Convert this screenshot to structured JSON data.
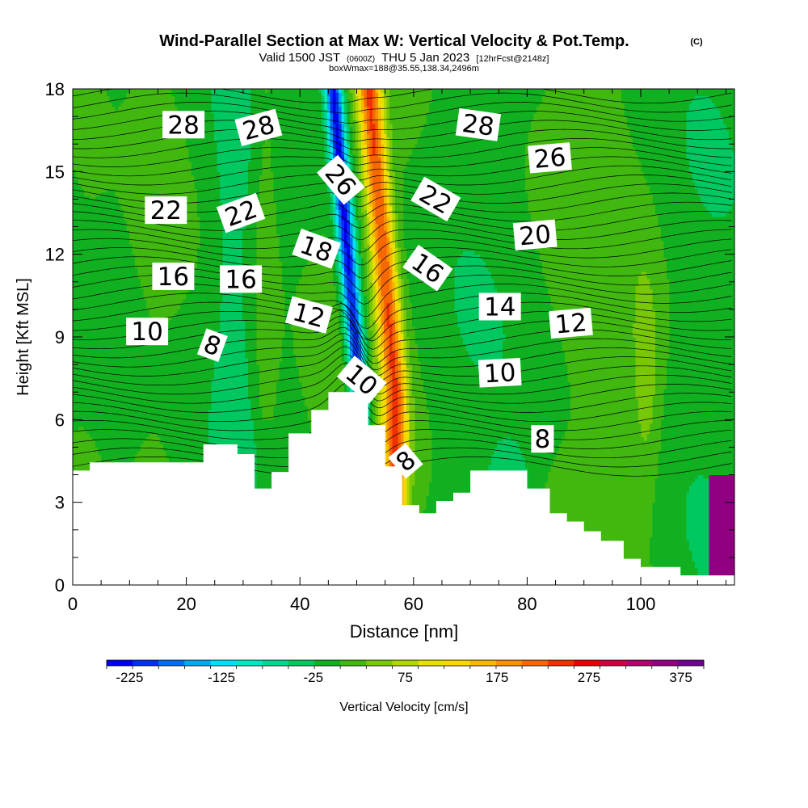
{
  "header": {
    "title": "Wind-Parallel Section at Max W: Vertical Velocity & Pot.Temp.",
    "copyright": "(C)",
    "valid_prefix": "Valid 1500 JST",
    "valid_utc": "(0600Z)",
    "valid_date": "THU 5 Jan 2023",
    "forecast": "[12hrFcst@2148z]",
    "box_info": "boxWmax=188@35.55,138.34,2496m"
  },
  "chart_data": {
    "type": "heatmap",
    "xlabel": "Distance [nm]",
    "ylabel": "Height [Kft MSL]",
    "xlim": [
      0,
      116.5
    ],
    "ylim": [
      0,
      18
    ],
    "x_ticks": [
      "0",
      "20",
      "40",
      "60",
      "80",
      "100"
    ],
    "y_ticks": [
      "0",
      "3",
      "6",
      "9",
      "12",
      "15",
      "18"
    ],
    "colorbar": {
      "label": "Vertical Velocity [cm/s]",
      "tick_labels": [
        "-225",
        "-125",
        "-25",
        "75",
        "175",
        "275",
        "375"
      ],
      "min": -250,
      "max": 400,
      "colors": [
        "#0000f0",
        "#0030f0",
        "#0070f0",
        "#00a8f0",
        "#00e0f8",
        "#00e8c0",
        "#00d890",
        "#00c860",
        "#10b020",
        "#40b810",
        "#78c808",
        "#b0d800",
        "#e8e000",
        "#f8d800",
        "#f8b800",
        "#f89000",
        "#f86800",
        "#f03000",
        "#e80000",
        "#d00040",
        "#b00070",
        "#900080",
        "#700090"
      ]
    },
    "terrain_profile": [
      [
        0,
        4.15
      ],
      [
        3,
        4.15
      ],
      [
        3,
        4.45
      ],
      [
        23,
        4.45
      ],
      [
        23,
        5.1
      ],
      [
        29,
        5.1
      ],
      [
        29,
        4.75
      ],
      [
        32,
        4.75
      ],
      [
        32,
        3.5
      ],
      [
        35,
        3.5
      ],
      [
        35,
        4.1
      ],
      [
        38,
        4.1
      ],
      [
        38,
        5.5
      ],
      [
        42,
        5.5
      ],
      [
        42,
        6.35
      ],
      [
        45,
        6.35
      ],
      [
        45,
        7.0
      ],
      [
        52,
        7.0
      ],
      [
        52,
        5.8
      ],
      [
        55,
        5.8
      ],
      [
        55,
        4.3
      ],
      [
        58,
        4.3
      ],
      [
        58,
        2.9
      ],
      [
        61,
        2.9
      ],
      [
        61,
        2.6
      ],
      [
        64,
        2.6
      ],
      [
        64,
        3.05
      ],
      [
        67,
        3.05
      ],
      [
        67,
        3.35
      ],
      [
        70,
        3.35
      ],
      [
        70,
        4.15
      ],
      [
        80,
        4.15
      ],
      [
        80,
        3.5
      ],
      [
        84,
        3.5
      ],
      [
        84,
        2.6
      ],
      [
        87,
        2.6
      ],
      [
        87,
        2.3
      ],
      [
        90,
        2.3
      ],
      [
        90,
        1.95
      ],
      [
        93,
        1.95
      ],
      [
        93,
        1.6
      ],
      [
        97,
        1.6
      ],
      [
        97,
        0.95
      ],
      [
        100,
        0.95
      ],
      [
        100,
        0.65
      ],
      [
        107,
        0.65
      ],
      [
        107,
        0.35
      ],
      [
        116.5,
        0.35
      ]
    ],
    "theta_labels": [
      {
        "text": "28",
        "x": 19.5,
        "y": 16.7,
        "rot": 0
      },
      {
        "text": "28",
        "x": 32.7,
        "y": 16.6,
        "rot": -15
      },
      {
        "text": "28",
        "x": 71.4,
        "y": 16.7,
        "rot": 8
      },
      {
        "text": "26",
        "x": 47.2,
        "y": 14.7,
        "rot": 50
      },
      {
        "text": "26",
        "x": 84,
        "y": 15.5,
        "rot": -5
      },
      {
        "text": "22",
        "x": 16.4,
        "y": 13.6,
        "rot": 0
      },
      {
        "text": "22",
        "x": 29.6,
        "y": 13.5,
        "rot": -20
      },
      {
        "text": "22",
        "x": 63.9,
        "y": 14.0,
        "rot": 30
      },
      {
        "text": "20",
        "x": 81.4,
        "y": 12.7,
        "rot": -5
      },
      {
        "text": "18",
        "x": 42.9,
        "y": 12.2,
        "rot": 20
      },
      {
        "text": "16",
        "x": 17.7,
        "y": 11.2,
        "rot": 0
      },
      {
        "text": "16",
        "x": 29.6,
        "y": 11.1,
        "rot": 0
      },
      {
        "text": "16",
        "x": 62.5,
        "y": 11.5,
        "rot": 35
      },
      {
        "text": "14",
        "x": 75.2,
        "y": 10.1,
        "rot": 0
      },
      {
        "text": "12",
        "x": 41.6,
        "y": 9.8,
        "rot": 15
      },
      {
        "text": "12",
        "x": 87.7,
        "y": 9.5,
        "rot": -5
      },
      {
        "text": "10",
        "x": 13.1,
        "y": 9.2,
        "rot": 0
      },
      {
        "text": "10",
        "x": 50.9,
        "y": 7.45,
        "rot": 40
      },
      {
        "text": "10",
        "x": 75.2,
        "y": 7.7,
        "rot": -3
      },
      {
        "text": "8",
        "x": 24.6,
        "y": 8.7,
        "rot": 20
      },
      {
        "text": "8",
        "x": 82.7,
        "y": 5.3,
        "rot": 0
      },
      {
        "text": "8",
        "x": 58.6,
        "y": 4.5,
        "rot": -40
      }
    ]
  }
}
